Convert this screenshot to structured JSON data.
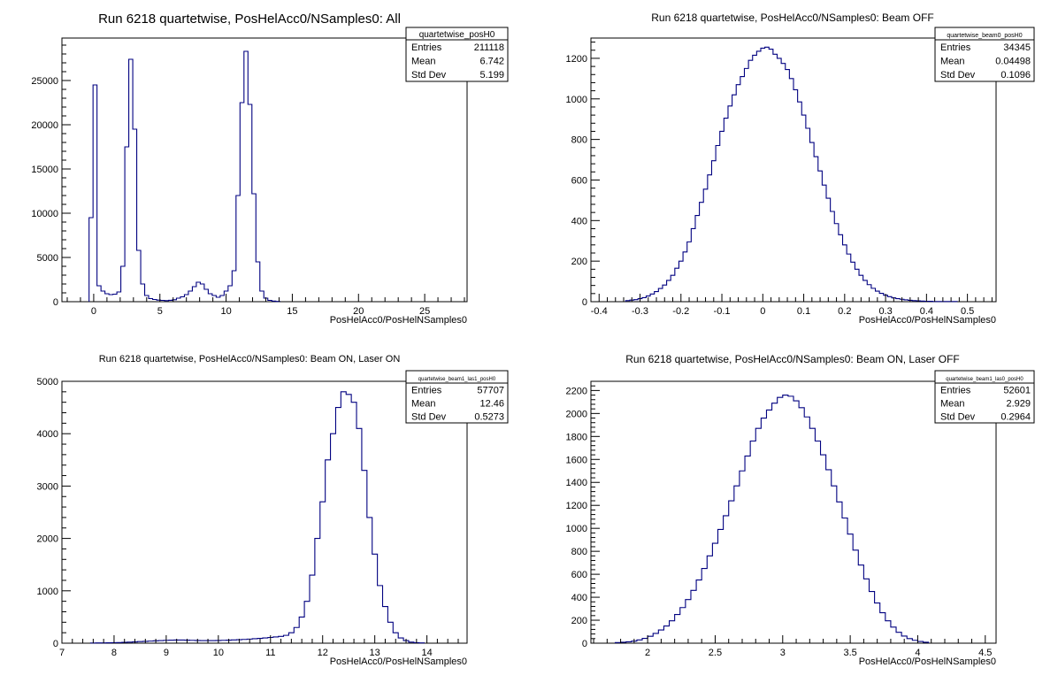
{
  "chart_data": [
    {
      "type": "histogram",
      "title": "Run 6218 quartetwise, PosHelAcc0/NSamples0: All",
      "xlabel": "PosHelAcc0/PosHelNSamples0",
      "xlim": [
        -2.4,
        28.2
      ],
      "ylim": [
        0,
        29800
      ],
      "xticks": [
        0,
        5,
        10,
        15,
        20,
        25
      ],
      "yticks": [
        0,
        5000,
        10000,
        15000,
        20000,
        25000
      ],
      "bins": {
        "x": [
          -0.2,
          0.1,
          0.4,
          0.7,
          1.0,
          1.3,
          1.6,
          1.9,
          2.2,
          2.5,
          2.8,
          3.1,
          3.4,
          3.7,
          4.0,
          4.3,
          4.6,
          4.9,
          5.2,
          5.5,
          5.8,
          6.1,
          6.4,
          6.7,
          7.0,
          7.3,
          7.6,
          7.9,
          8.2,
          8.5,
          8.8,
          9.1,
          9.4,
          9.7,
          10.0,
          10.3,
          10.6,
          10.9,
          11.2,
          11.5,
          11.8,
          12.1,
          12.4,
          12.7,
          13.0,
          13.3,
          13.6,
          13.9
        ],
        "y": [
          9500,
          24500,
          1800,
          1200,
          900,
          800,
          850,
          1100,
          4000,
          17500,
          27400,
          19500,
          5800,
          2000,
          700,
          350,
          250,
          180,
          150,
          120,
          160,
          220,
          400,
          550,
          800,
          1200,
          1700,
          2200,
          2000,
          1400,
          900,
          700,
          500,
          700,
          1200,
          1800,
          3500,
          12000,
          22500,
          28300,
          22300,
          12200,
          4500,
          1200,
          400,
          150,
          70,
          30
        ],
        "width": 0.3
      },
      "stats": {
        "name": "quartetwise_posH0",
        "entries": "211118",
        "mean": "6.742",
        "std_dev": "5.199"
      }
    },
    {
      "type": "histogram",
      "title": "Run 6218 quartetwise, PosHelAcc0/NSamples0: Beam OFF",
      "xlabel": "PosHelAcc0/PosHelNSamples0",
      "xlim": [
        -0.42,
        0.57
      ],
      "ylim": [
        0,
        1300
      ],
      "xticks": [
        -0.4,
        -0.3,
        -0.2,
        -0.1,
        0,
        0.1,
        0.2,
        0.3,
        0.4,
        0.5
      ],
      "yticks": [
        0,
        200,
        400,
        600,
        800,
        1000,
        1200
      ],
      "bins": {
        "x": [
          -0.33,
          -0.32,
          -0.31,
          -0.3,
          -0.29,
          -0.28,
          -0.27,
          -0.26,
          -0.25,
          -0.24,
          -0.23,
          -0.22,
          -0.21,
          -0.2,
          -0.19,
          -0.18,
          -0.17,
          -0.16,
          -0.15,
          -0.14,
          -0.13,
          -0.12,
          -0.11,
          -0.1,
          -0.09,
          -0.08,
          -0.07,
          -0.06,
          -0.05,
          -0.04,
          -0.03,
          -0.02,
          -0.01,
          0.0,
          0.01,
          0.02,
          0.03,
          0.04,
          0.05,
          0.06,
          0.07,
          0.08,
          0.09,
          0.1,
          0.11,
          0.12,
          0.13,
          0.14,
          0.15,
          0.16,
          0.17,
          0.18,
          0.19,
          0.2,
          0.21,
          0.22,
          0.23,
          0.24,
          0.25,
          0.26,
          0.27,
          0.28,
          0.29,
          0.3,
          0.31,
          0.32,
          0.33,
          0.34,
          0.35,
          0.36,
          0.37,
          0.38,
          0.39,
          0.4,
          0.41,
          0.42,
          0.43,
          0.44,
          0.45,
          0.46,
          0.47
        ],
        "y": [
          5,
          8,
          10,
          15,
          20,
          28,
          38,
          50,
          65,
          82,
          105,
          130,
          165,
          200,
          245,
          295,
          360,
          425,
          490,
          555,
          625,
          695,
          770,
          840,
          905,
          965,
          1020,
          1070,
          1110,
          1150,
          1190,
          1215,
          1235,
          1250,
          1255,
          1245,
          1220,
          1200,
          1175,
          1145,
          1100,
          1045,
          985,
          920,
          855,
          785,
          715,
          645,
          575,
          510,
          445,
          385,
          330,
          280,
          235,
          195,
          160,
          130,
          105,
          84,
          66,
          52,
          41,
          32,
          25,
          19,
          15,
          12,
          9,
          7,
          5,
          4,
          3,
          2,
          2,
          1,
          1,
          1,
          1,
          1,
          1
        ],
        "width": 0.01
      },
      "stats": {
        "name": "quartetwise_beam0_posH0",
        "entries": "34345",
        "mean": "0.04498",
        "std_dev": "0.1096"
      }
    },
    {
      "type": "histogram",
      "title": "Run 6218 quartetwise, PosHelAcc0/NSamples0: Beam ON, Laser ON",
      "xlabel": "PosHelAcc0/PosHelNSamples0",
      "xlim": [
        7.0,
        14.77
      ],
      "ylim": [
        0,
        5000
      ],
      "xticks": [
        7,
        8,
        9,
        10,
        11,
        12,
        13,
        14
      ],
      "yticks": [
        0,
        1000,
        2000,
        3000,
        4000,
        5000
      ],
      "bins": {
        "x": [
          7.6,
          7.7,
          7.8,
          7.9,
          8.0,
          8.1,
          8.2,
          8.3,
          8.4,
          8.5,
          8.6,
          8.7,
          8.8,
          8.9,
          9.0,
          9.1,
          9.2,
          9.3,
          9.4,
          9.5,
          9.6,
          9.7,
          9.8,
          9.9,
          10.0,
          10.1,
          10.2,
          10.3,
          10.4,
          10.5,
          10.6,
          10.7,
          10.8,
          10.9,
          11.0,
          11.1,
          11.2,
          11.3,
          11.4,
          11.5,
          11.6,
          11.7,
          11.8,
          11.9,
          12.0,
          12.1,
          12.2,
          12.3,
          12.4,
          12.5,
          12.6,
          12.7,
          12.8,
          12.9,
          13.0,
          13.1,
          13.2,
          13.3,
          13.4,
          13.5,
          13.6,
          13.7,
          13.8,
          13.9
        ],
        "y": [
          3,
          5,
          6,
          8,
          10,
          12,
          15,
          20,
          25,
          30,
          35,
          40,
          45,
          50,
          55,
          58,
          60,
          60,
          58,
          55,
          52,
          50,
          50,
          50,
          52,
          55,
          58,
          62,
          66,
          72,
          78,
          85,
          92,
          100,
          110,
          120,
          130,
          150,
          200,
          300,
          500,
          800,
          1300,
          2000,
          2700,
          3500,
          4000,
          4500,
          4800,
          4750,
          4600,
          4100,
          3300,
          2400,
          1700,
          1100,
          700,
          400,
          200,
          100,
          50,
          20,
          10,
          5
        ],
        "width": 0.1
      },
      "stats": {
        "name": "quartetwise_beam1_las1_posH0",
        "entries": "57707",
        "mean": "12.46",
        "std_dev": "0.5273"
      }
    },
    {
      "type": "histogram",
      "title": "Run 6218 quartetwise, PosHelAcc0/NSamples0: Beam ON, Laser OFF",
      "xlabel": "PosHelAcc0/PosHelNSamples0",
      "xlim": [
        1.58,
        4.58
      ],
      "ylim": [
        0,
        2280
      ],
      "xticks": [
        2,
        2.5,
        3,
        3.5,
        4,
        4.5
      ],
      "yticks": [
        0,
        200,
        400,
        600,
        800,
        1000,
        1200,
        1400,
        1600,
        1800,
        2000,
        2200
      ],
      "bins": {
        "x": [
          1.78,
          1.82,
          1.86,
          1.9,
          1.94,
          1.98,
          2.02,
          2.06,
          2.1,
          2.14,
          2.18,
          2.22,
          2.26,
          2.3,
          2.34,
          2.38,
          2.42,
          2.46,
          2.5,
          2.54,
          2.58,
          2.62,
          2.66,
          2.7,
          2.74,
          2.78,
          2.82,
          2.86,
          2.9,
          2.94,
          2.98,
          3.02,
          3.06,
          3.1,
          3.14,
          3.18,
          3.22,
          3.26,
          3.3,
          3.34,
          3.38,
          3.42,
          3.46,
          3.5,
          3.54,
          3.58,
          3.62,
          3.66,
          3.7,
          3.74,
          3.78,
          3.82,
          3.86,
          3.9,
          3.94,
          3.98,
          4.02,
          4.06
        ],
        "y": [
          5,
          8,
          12,
          18,
          28,
          42,
          60,
          85,
          115,
          150,
          195,
          250,
          310,
          380,
          460,
          550,
          650,
          760,
          870,
          990,
          1110,
          1240,
          1370,
          1500,
          1630,
          1760,
          1870,
          1960,
          2030,
          2090,
          2140,
          2160,
          2150,
          2110,
          2050,
          1970,
          1870,
          1760,
          1640,
          1510,
          1370,
          1230,
          1090,
          950,
          810,
          680,
          560,
          450,
          350,
          265,
          195,
          140,
          95,
          62,
          40,
          25,
          15,
          8
        ],
        "width": 0.04
      },
      "stats": {
        "name": "quartetwise_beam1_las0_posH0",
        "entries": "52601",
        "mean": "2.929",
        "std_dev": "0.2964"
      }
    }
  ],
  "stats_labels": {
    "entries": "Entries",
    "mean": "Mean",
    "std_dev": "Std Dev"
  }
}
